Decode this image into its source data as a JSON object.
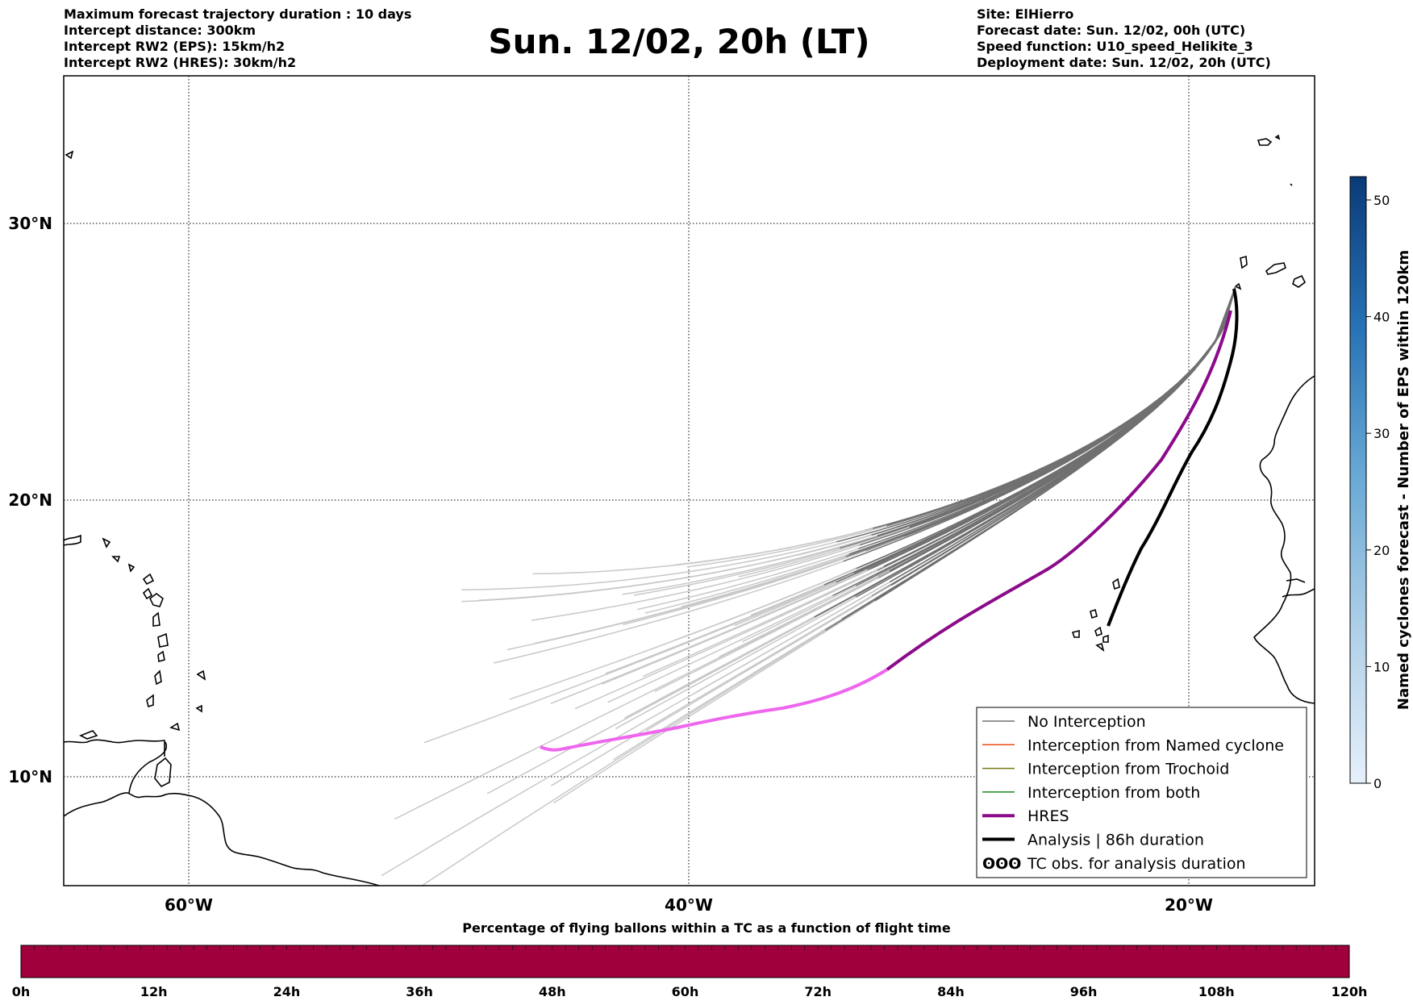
{
  "header": {
    "title": "Sun. 12/02, 20h (LT)",
    "left_lines": [
      "Maximum forecast trajectory duration : 10 days",
      "Intercept distance: 300km",
      "Intercept RW2 (EPS):  15km/h2",
      "Intercept RW2 (HRES): 30km/h2"
    ],
    "right_lines": [
      "Site: ElHierro",
      "Forecast date: Sun. 12/02, 00h (UTC)",
      "Speed function: U10_speed_Helikite_3",
      "Deployment date: Sun. 12/02, 20h (UTC)"
    ]
  },
  "map": {
    "lon_ticks": [
      {
        "lon": -60,
        "label": "60°W"
      },
      {
        "lon": -40,
        "label": "40°W"
      },
      {
        "lon": -20,
        "label": "20°W"
      }
    ],
    "lat_ticks": [
      {
        "lat": 30,
        "label": "30°N"
      },
      {
        "lat": 20,
        "label": "20°N"
      },
      {
        "lat": 10,
        "label": "10°N"
      }
    ],
    "colors": {
      "no_interception": "#707070",
      "late_track": "#c8c8c8",
      "named_cyclone": "#e8501a",
      "trochoid": "#7a7a1a",
      "both": "#1a8a1a",
      "hres": "#8b0b8b",
      "hres_late": "#ee66ee",
      "analysis": "#000000"
    }
  },
  "legend": {
    "items": [
      {
        "label": "No Interception",
        "color": "#707070",
        "width": 1.5
      },
      {
        "label": "Interception from Named cyclone",
        "color": "#e8501a",
        "width": 1.5
      },
      {
        "label": "Interception from Trochoid",
        "color": "#7a7a1a",
        "width": 1.5
      },
      {
        "label": "Interception from both",
        "color": "#1a8a1a",
        "width": 1.5
      },
      {
        "label": "HRES",
        "color": "#8b0b8b",
        "width": 4
      },
      {
        "label": "Analysis | 86h duration",
        "color": "#000000",
        "width": 4
      },
      {
        "label": "TC obs. for analysis duration",
        "color": "#000000",
        "width": 0,
        "symbol": "ʘʘʘ"
      }
    ]
  },
  "colorbar_right": {
    "label": "Named cyclones forecast - Number of EPS within 120km",
    "ticks": [
      0,
      10,
      20,
      30,
      40,
      50
    ],
    "max": 52
  },
  "colorbar_bottom": {
    "label": "Percentage of flying ballons within a TC as a function of flight time",
    "color": "#a0003c",
    "ticks": [
      "0h",
      "12h",
      "24h",
      "36h",
      "48h",
      "60h",
      "72h",
      "84h",
      "96h",
      "108h",
      "120h"
    ]
  }
}
